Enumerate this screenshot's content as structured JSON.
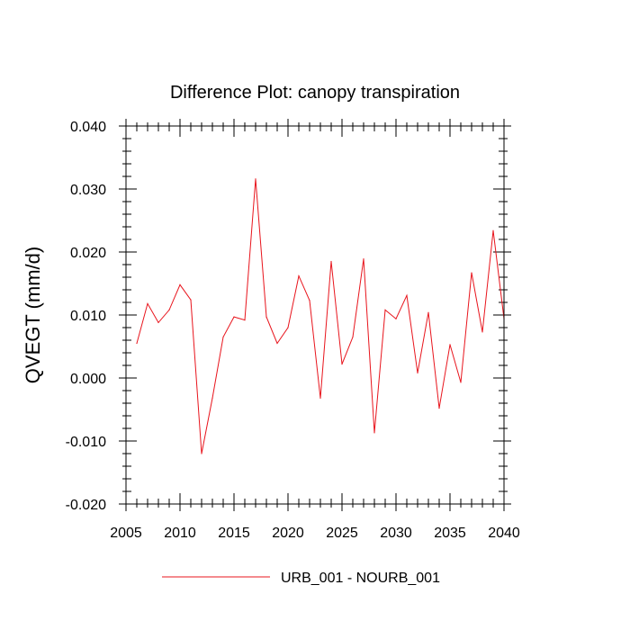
{
  "chart_data": {
    "type": "line",
    "title": "Difference Plot: canopy transpiration",
    "xlabel": "",
    "ylabel": "QVEGT  (mm/d)",
    "xlim": [
      2005,
      2040
    ],
    "ylim": [
      -0.02,
      0.04
    ],
    "x_ticks": [
      2005,
      2010,
      2015,
      2020,
      2025,
      2030,
      2035,
      2040
    ],
    "x_tick_labels": [
      "2005",
      "2010",
      "2015",
      "2020",
      "2025",
      "2030",
      "2035",
      "2040"
    ],
    "y_ticks": [
      -0.02,
      -0.01,
      0.0,
      0.01,
      0.02,
      0.03,
      0.04
    ],
    "y_tick_labels": [
      "-0.020",
      "-0.010",
      "0.000",
      "0.010",
      "0.020",
      "0.030",
      "0.040"
    ],
    "grid": false,
    "legend_position": "bottom",
    "series": [
      {
        "name": "URB_001 - NOURB_001",
        "color": "#e8141c",
        "x": [
          2006,
          2007,
          2008,
          2009,
          2010,
          2011,
          2012,
          2013,
          2014,
          2015,
          2016,
          2017,
          2018,
          2019,
          2020,
          2021,
          2022,
          2023,
          2024,
          2025,
          2026,
          2027,
          2028,
          2029,
          2030,
          2031,
          2032,
          2033,
          2034,
          2035,
          2036,
          2037,
          2038,
          2039,
          2040
        ],
        "values": [
          0.0055,
          0.0118,
          0.0088,
          0.0108,
          0.0148,
          0.0124,
          -0.012,
          -0.0032,
          0.0065,
          0.0097,
          0.0092,
          0.0316,
          0.0097,
          0.0055,
          0.008,
          0.0162,
          0.0123,
          -0.0032,
          0.0185,
          0.0022,
          0.0065,
          0.0189,
          -0.0087,
          0.0108,
          0.0094,
          0.0131,
          0.0008,
          0.0104,
          -0.0048,
          0.0053,
          -0.0007,
          0.0167,
          0.0073,
          0.0234,
          0.0094
        ]
      }
    ]
  }
}
